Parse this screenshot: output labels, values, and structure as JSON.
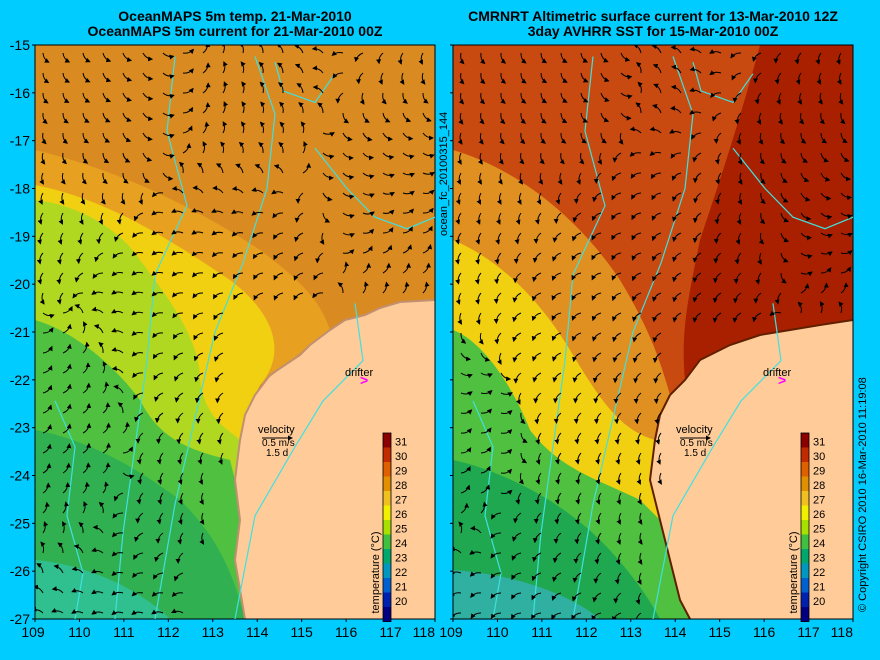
{
  "left_panel": {
    "title_line1": "OceanMAPS 5m temp. 21-Mar-2010",
    "title_line2": "OceanMAPS 5m current for 21-Mar-2010 00Z"
  },
  "right_panel": {
    "title_line1": "CMRNRT Altimetric surface current for 13-Mar-2010 12Z",
    "title_line2": "3day AVHRR SST for 15-Mar-2010 00Z"
  },
  "axes": {
    "lat_ticks": [
      "-15",
      "-16",
      "-17",
      "-18",
      "-19",
      "-20",
      "-21",
      "-22",
      "-23",
      "-24",
      "-25",
      "-26",
      "-27"
    ],
    "lon_ticks": [
      "109",
      "110",
      "111",
      "112",
      "113",
      "114",
      "115",
      "116",
      "117",
      "118"
    ],
    "lon_range": [
      109,
      118
    ],
    "lat_range": [
      -27,
      -15
    ]
  },
  "annotations": {
    "drifter": "drifter",
    "velocity": "velocity",
    "speed": "0.5 m/s",
    "duration": "1.5 d"
  },
  "colorbar": {
    "ticks": [
      "31",
      "30",
      "29",
      "28",
      "27",
      "26",
      "25",
      "24",
      "23",
      "22",
      "21",
      "20"
    ],
    "label": "temperature (°C)",
    "colors": [
      "#8b0000",
      "#c42a00",
      "#e06000",
      "#e09000",
      "#f0c020",
      "#f0f000",
      "#a8e000",
      "#40c040",
      "#00a870",
      "#0098c0",
      "#0060d0",
      "#0020b0",
      "#000080"
    ]
  },
  "side_labels": {
    "run_id": "ocean_fc_20100315_144",
    "copyright": "© Copyright CSIRO 2010   16-Mar-2010 11:19:08"
  },
  "colors": {
    "background": "#00ccff",
    "land": "#ffcc99",
    "coast_line": "#40e0e0",
    "drifter": "#ff00ff"
  }
}
